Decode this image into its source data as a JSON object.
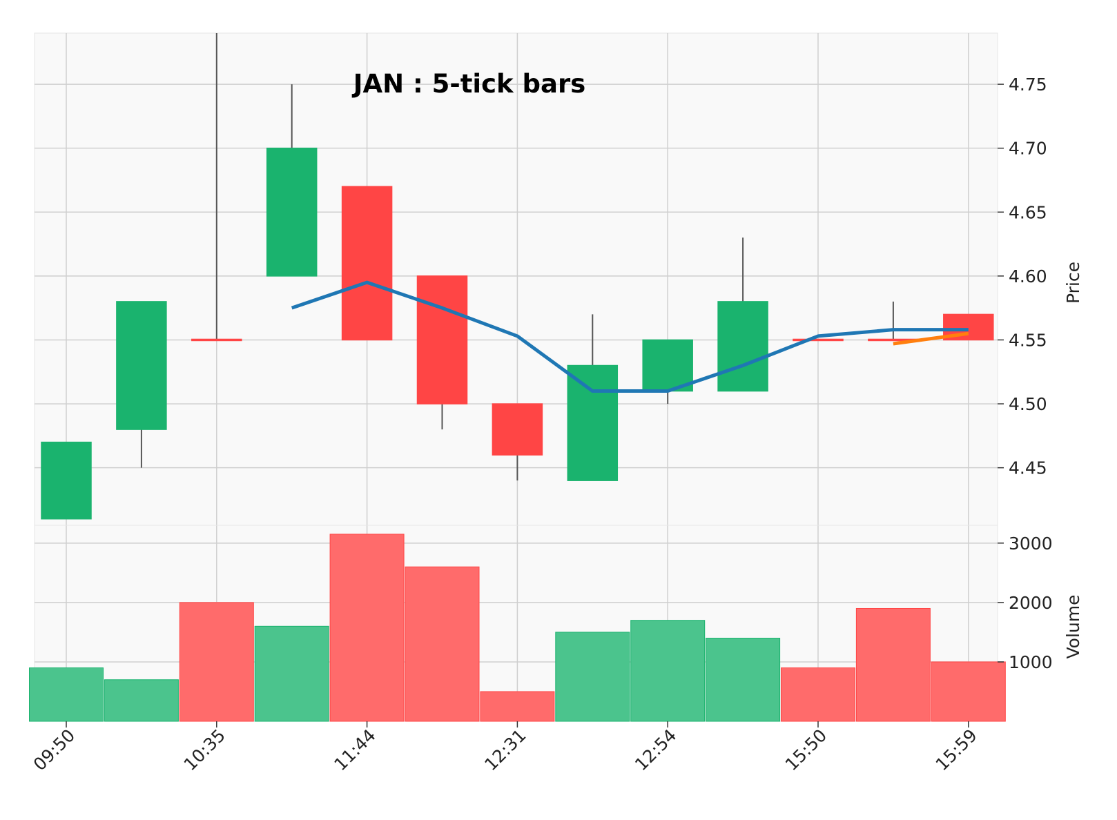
{
  "chart_data": {
    "type": "candlestick",
    "title": "JAN : 5-tick bars",
    "x_tick_labels": [
      "09:50",
      "10:35",
      "11:44",
      "12:31",
      "12:54",
      "15:50",
      "15:59"
    ],
    "x_tick_bar_index": [
      0,
      2,
      4,
      6,
      8,
      10,
      12
    ],
    "price_panel": {
      "ylabel": "Price",
      "yticks": [
        "4.45",
        "4.50",
        "4.55",
        "4.60",
        "4.65",
        "4.70",
        "4.75"
      ],
      "ylim": [
        4.405,
        4.79
      ],
      "candles": [
        {
          "open": 4.41,
          "high": 4.47,
          "low": 4.41,
          "close": 4.47
        },
        {
          "open": 4.48,
          "high": 4.58,
          "low": 4.45,
          "close": 4.58
        },
        {
          "open": 4.55,
          "high": 4.79,
          "low": 4.55,
          "close": 4.55
        },
        {
          "open": 4.6,
          "high": 4.75,
          "low": 4.6,
          "close": 4.7
        },
        {
          "open": 4.67,
          "high": 4.67,
          "low": 4.55,
          "close": 4.55
        },
        {
          "open": 4.6,
          "high": 4.6,
          "low": 4.48,
          "close": 4.5
        },
        {
          "open": 4.5,
          "high": 4.5,
          "low": 4.44,
          "close": 4.46
        },
        {
          "open": 4.44,
          "high": 4.57,
          "low": 4.44,
          "close": 4.53
        },
        {
          "open": 4.51,
          "high": 4.55,
          "low": 4.5,
          "close": 4.55
        },
        {
          "open": 4.51,
          "high": 4.63,
          "low": 4.51,
          "close": 4.58
        },
        {
          "open": 4.55,
          "high": 4.55,
          "low": 4.55,
          "close": 4.55
        },
        {
          "open": 4.55,
          "high": 4.58,
          "low": 4.55,
          "close": 4.55
        },
        {
          "open": 4.57,
          "high": 4.57,
          "low": 4.55,
          "close": 4.55
        }
      ],
      "moving_averages": [
        {
          "color": "#1f77b4",
          "points": [
            [
              3,
              4.575
            ],
            [
              4,
              4.595
            ],
            [
              5,
              4.575
            ],
            [
              6,
              4.553
            ],
            [
              7,
              4.51
            ],
            [
              8,
              4.51
            ],
            [
              9,
              4.53
            ],
            [
              10,
              4.553
            ],
            [
              11,
              4.558
            ],
            [
              12,
              4.558
            ]
          ]
        },
        {
          "color": "#ff7f0e",
          "points": [
            [
              11,
              4.547
            ],
            [
              12,
              4.555
            ]
          ]
        }
      ]
    },
    "volume_panel": {
      "ylabel": "Volume",
      "yticks": [
        "1000",
        "2000",
        "3000"
      ],
      "ylim": [
        0,
        3300
      ],
      "values": [
        900,
        700,
        2000,
        1600,
        3150,
        2600,
        500,
        1500,
        1700,
        1400,
        900,
        1900,
        1000
      ]
    },
    "colors": {
      "up": "#1ab36e",
      "down": "#ff4545",
      "vol_up": "#4bc48d",
      "vol_down": "#ff6b6b",
      "wick": "#555555",
      "grid": "#cfcfcf",
      "panel_bg": "#f9f9f9"
    }
  }
}
